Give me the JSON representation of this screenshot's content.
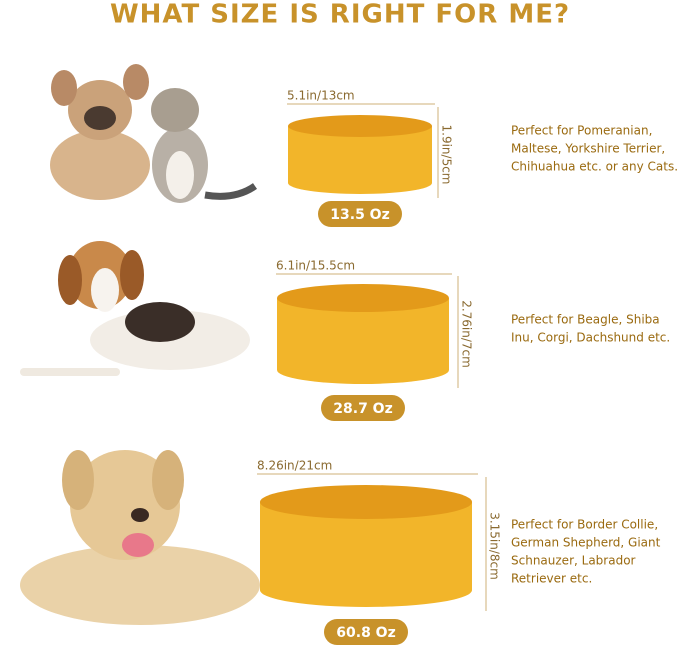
{
  "header": {
    "title": "WHAT SIZE IS RIGHT FOR ME?"
  },
  "rows": [
    {
      "width": "5.1in/13cm",
      "height": "1.9in/5cm",
      "capacity": "13.5 Oz",
      "description": [
        "Perfect for Pomeranian,",
        "Maltese, Yorkshire Terrier,",
        "Chihuahua etc. or any Cats."
      ]
    },
    {
      "width": "6.1in/15.5cm",
      "height": "2.76in/7cm",
      "capacity": "28.7 Oz",
      "description": [
        "Perfect for Beagle, Shiba",
        "Inu, Corgi, Dachshund etc."
      ]
    },
    {
      "width": "8.26in/21cm",
      "height": "3.15in/8cm",
      "capacity": "60.8 Oz",
      "description": [
        "Perfect for Border Collie,",
        "German Shepherd, Giant",
        "Schnauzer, Labrador",
        "Retriever etc."
      ]
    }
  ]
}
